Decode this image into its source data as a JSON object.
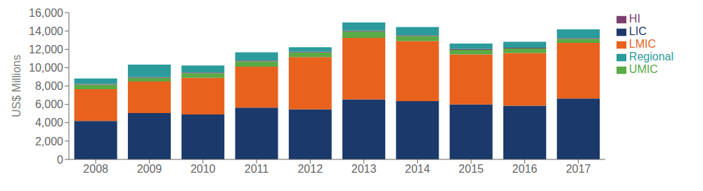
{
  "chart_data": {
    "type": "bar",
    "stacked": true,
    "categories": [
      "2008",
      "2009",
      "2010",
      "2011",
      "2012",
      "2013",
      "2014",
      "2015",
      "2016",
      "2017"
    ],
    "series": [
      {
        "name": "LIC",
        "color": "#1b3a6b",
        "values": [
          4200,
          5050,
          4900,
          5650,
          5450,
          6550,
          6350,
          6000,
          5850,
          6650
        ]
      },
      {
        "name": "LMIC",
        "color": "#e8621e",
        "values": [
          3450,
          3450,
          4000,
          4450,
          5700,
          6700,
          6550,
          5450,
          5750,
          6050
        ]
      },
      {
        "name": "UMIC",
        "color": "#5aaa46",
        "values": [
          500,
          400,
          500,
          600,
          500,
          700,
          550,
          500,
          500,
          450
        ]
      },
      {
        "name": "HI",
        "color": "#7b3f6e",
        "values": [
          80,
          80,
          80,
          80,
          80,
          80,
          80,
          80,
          80,
          80
        ]
      },
      {
        "name": "Regional",
        "color": "#2b9b9b",
        "values": [
          600,
          1350,
          750,
          900,
          500,
          900,
          900,
          600,
          650,
          950
        ]
      }
    ],
    "ylabel": "US$ Millions",
    "ylim": [
      0,
      16000
    ],
    "yticks": [
      0,
      {
        "value": 2000,
        "label": "2,000"
      },
      {
        "value": 4000,
        "label": "4,000"
      },
      {
        "value": 6000,
        "label": "6,000"
      },
      {
        "value": 8000,
        "label": "8,000"
      },
      {
        "value": 10000,
        "label": "10,000"
      },
      {
        "value": 12000,
        "label": "12,000"
      },
      {
        "value": 14000,
        "label": "14,000"
      },
      {
        "value": 16000,
        "label": "16,000"
      }
    ],
    "grid": false,
    "legend": "right"
  }
}
